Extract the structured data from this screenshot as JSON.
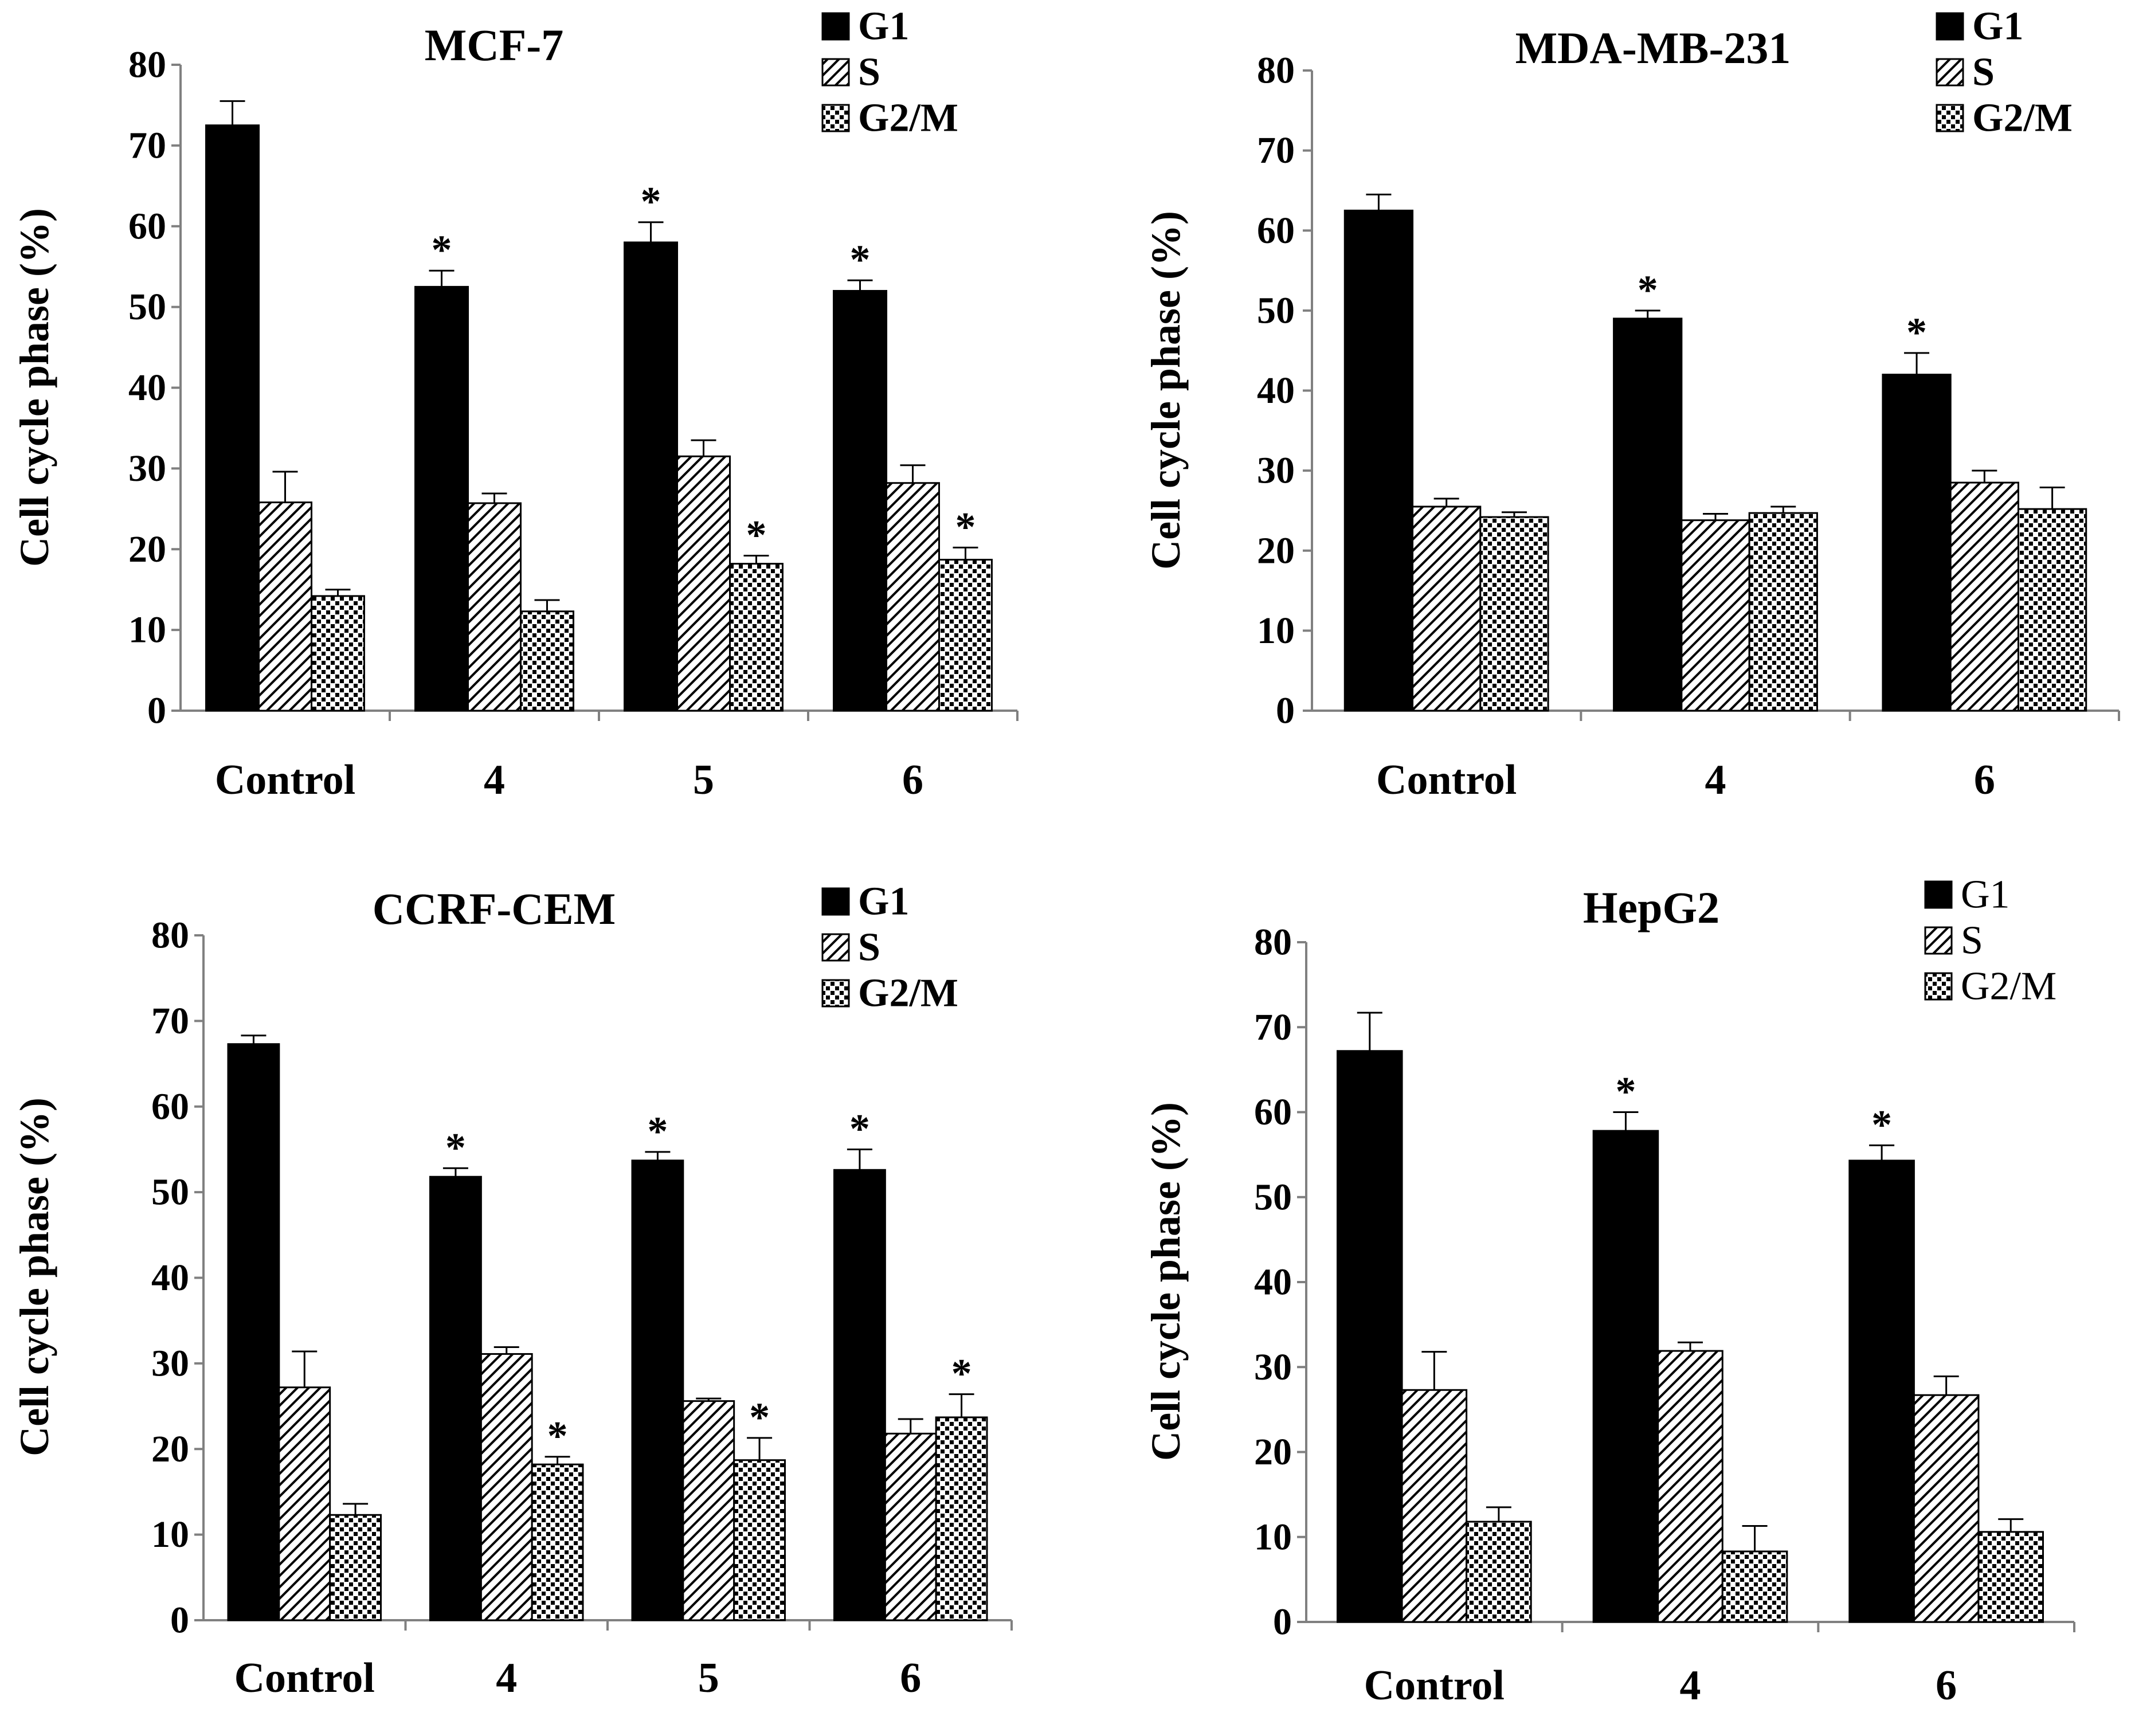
{
  "patterns": {
    "G1": "solid-fill",
    "S": "diagonal-hatch",
    "G2/M": "checker-dots"
  },
  "colors": {
    "bar_fill": "#000000",
    "pattern_bg": "#ffffff"
  },
  "chart_data": [
    {
      "type": "bar",
      "title": "MCF-7",
      "ylabel": "Cell cycle phase (%)",
      "xlabel": "",
      "ylim": [
        0,
        80
      ],
      "yticks": [
        "0",
        "10",
        "20",
        "30",
        "40",
        "50",
        "60",
        "70",
        "80"
      ],
      "categories": [
        "Control",
        "4",
        "5",
        "6"
      ],
      "legend": {
        "position": "top-right",
        "bold": true
      },
      "series": [
        {
          "name": "G1",
          "pattern": "solid",
          "values": [
            72.5,
            52.5,
            58,
            52
          ],
          "errors": [
            3,
            2,
            2.5,
            1.3
          ],
          "significant": [
            false,
            true,
            true,
            true
          ]
        },
        {
          "name": "S",
          "pattern": "hatch",
          "values": [
            25.8,
            25.7,
            31.5,
            28.2
          ],
          "errors": [
            3.8,
            1.2,
            2,
            2.2
          ],
          "significant": [
            false,
            false,
            false,
            false
          ]
        },
        {
          "name": "G2/M",
          "pattern": "dots",
          "values": [
            14.2,
            12.3,
            18.2,
            18.7
          ],
          "errors": [
            0.8,
            1.4,
            1,
            1.5
          ],
          "significant": [
            false,
            false,
            true,
            true
          ]
        }
      ],
      "annotation": "*"
    },
    {
      "type": "bar",
      "title": "MDA-MB-231",
      "ylabel": "Cell cycle phase (%)",
      "xlabel": "",
      "ylim": [
        0,
        80
      ],
      "yticks": [
        "0",
        "10",
        "20",
        "30",
        "40",
        "50",
        "60",
        "70",
        "80"
      ],
      "categories": [
        "Control",
        "4",
        "6"
      ],
      "legend": {
        "position": "top-right",
        "bold": true
      },
      "series": [
        {
          "name": "G1",
          "pattern": "solid",
          "values": [
            62.5,
            49,
            42
          ],
          "errors": [
            2,
            1,
            2.7
          ],
          "significant": [
            false,
            true,
            true
          ]
        },
        {
          "name": "S",
          "pattern": "hatch",
          "values": [
            25.5,
            23.8,
            28.5
          ],
          "errors": [
            1,
            0.8,
            1.5
          ],
          "significant": [
            false,
            false,
            false
          ]
        },
        {
          "name": "G2/M",
          "pattern": "dots",
          "values": [
            24.2,
            24.7,
            25.2
          ],
          "errors": [
            0.6,
            0.8,
            2.7
          ],
          "significant": [
            false,
            false,
            false
          ]
        }
      ],
      "annotation": "*"
    },
    {
      "type": "bar",
      "title": "CCRF-CEM",
      "ylabel": "Cell cycle phase (%)",
      "xlabel": "",
      "ylim": [
        0,
        80
      ],
      "yticks": [
        "0",
        "10",
        "20",
        "30",
        "40",
        "50",
        "60",
        "70",
        "80"
      ],
      "categories": [
        "Control",
        "4",
        "5",
        "6"
      ],
      "legend": {
        "position": "top-right",
        "bold": true
      },
      "series": [
        {
          "name": "G1",
          "pattern": "solid",
          "values": [
            67.3,
            51.8,
            53.7,
            52.6
          ],
          "errors": [
            1,
            1,
            1,
            2.4
          ],
          "significant": [
            false,
            true,
            true,
            true
          ]
        },
        {
          "name": "S",
          "pattern": "hatch",
          "values": [
            27.2,
            31.1,
            25.6,
            21.8
          ],
          "errors": [
            4.2,
            0.8,
            0.3,
            1.7
          ],
          "significant": [
            false,
            false,
            false,
            false
          ]
        },
        {
          "name": "G2/M",
          "pattern": "dots",
          "values": [
            12.3,
            18.2,
            18.7,
            23.7
          ],
          "errors": [
            1.3,
            0.9,
            2.6,
            2.7
          ],
          "significant": [
            false,
            true,
            true,
            true
          ]
        }
      ],
      "annotation": "*"
    },
    {
      "type": "bar",
      "title": "HepG2",
      "ylabel": "Cell cycle phase (%)",
      "xlabel": "",
      "ylim": [
        0,
        80
      ],
      "yticks": [
        "0",
        "10",
        "20",
        "30",
        "40",
        "50",
        "60",
        "70",
        "80"
      ],
      "categories": [
        "Control",
        "4",
        "6"
      ],
      "legend": {
        "position": "top-right",
        "bold": false
      },
      "series": [
        {
          "name": "G1",
          "pattern": "solid",
          "values": [
            67.2,
            57.8,
            54.3
          ],
          "errors": [
            4.5,
            2.2,
            1.8
          ],
          "significant": [
            false,
            true,
            true
          ]
        },
        {
          "name": "S",
          "pattern": "hatch",
          "values": [
            27.3,
            31.9,
            26.7
          ],
          "errors": [
            4.5,
            1,
            2.2
          ],
          "significant": [
            false,
            false,
            false
          ]
        },
        {
          "name": "G2/M",
          "pattern": "dots",
          "values": [
            11.8,
            8.3,
            10.6
          ],
          "errors": [
            1.7,
            3,
            1.5
          ],
          "significant": [
            false,
            false,
            false
          ]
        }
      ],
      "annotation": "*"
    }
  ]
}
